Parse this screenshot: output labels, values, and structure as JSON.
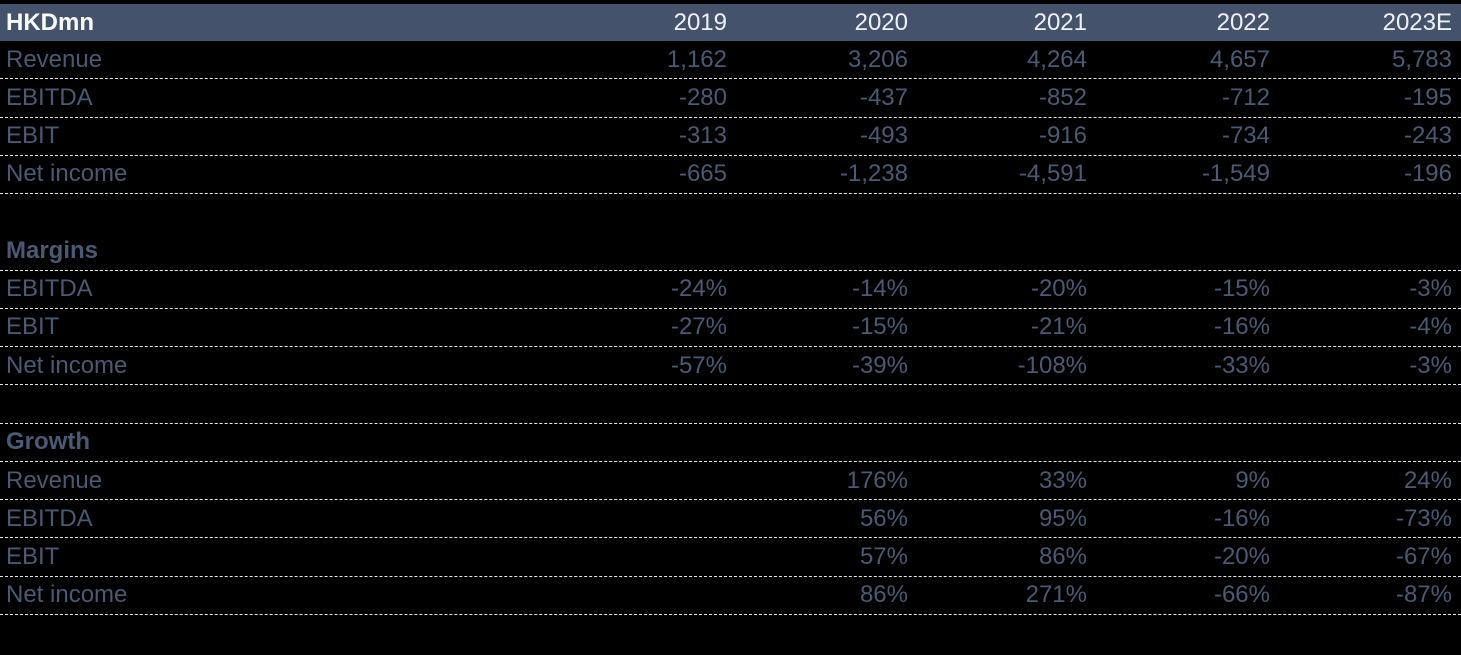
{
  "colors": {
    "background": "#000000",
    "header_bg": "#45526B",
    "header_unit_text": "#FBFCFE",
    "header_year_text": "#EDF1F8",
    "body_text": "#4A5A74",
    "separator_line": "#E4E8EE"
  },
  "table": {
    "unit_label": "HKDmn",
    "columns": [
      "2019",
      "2020",
      "2021",
      "2022",
      "2023E"
    ],
    "rows": [
      {
        "type": "data",
        "label": "Revenue",
        "values": [
          "1,162",
          "3,206",
          "4,264",
          "4,657",
          "5,783"
        ],
        "separator": true
      },
      {
        "type": "data",
        "label": "EBITDA",
        "values": [
          "-280",
          "-437",
          "-852",
          "-712",
          "-195"
        ],
        "separator": true
      },
      {
        "type": "data",
        "label": "EBIT",
        "values": [
          "-313",
          "-493",
          "-916",
          "-734",
          "-243"
        ],
        "separator": true
      },
      {
        "type": "data",
        "label": "Net income",
        "values": [
          "-665",
          "-1,238",
          "-4,591",
          "-1,549",
          "-196"
        ],
        "separator": true
      },
      {
        "type": "spacer",
        "label": "",
        "values": [
          "",
          "",
          "",
          "",
          ""
        ],
        "separator": false
      },
      {
        "type": "section",
        "label": "Margins",
        "values": [
          "",
          "",
          "",
          "",
          ""
        ],
        "separator": true
      },
      {
        "type": "data",
        "label": "EBITDA",
        "values": [
          "-24%",
          "-14%",
          "-20%",
          "-15%",
          "-3%"
        ],
        "separator": true
      },
      {
        "type": "data",
        "label": "EBIT",
        "values": [
          "-27%",
          "-15%",
          "-21%",
          "-16%",
          "-4%"
        ],
        "separator": true
      },
      {
        "type": "data",
        "label": "Net income",
        "values": [
          "-57%",
          "-39%",
          "-108%",
          "-33%",
          "-3%"
        ],
        "separator": true
      },
      {
        "type": "spacer",
        "label": "",
        "values": [
          "",
          "",
          "",
          "",
          ""
        ],
        "separator": true
      },
      {
        "type": "section",
        "label": "Growth",
        "values": [
          "",
          "",
          "",
          "",
          ""
        ],
        "separator": true
      },
      {
        "type": "data",
        "label": "Revenue",
        "values": [
          "",
          "176%",
          "33%",
          "9%",
          "24%"
        ],
        "separator": true
      },
      {
        "type": "data",
        "label": "EBITDA",
        "values": [
          "",
          "56%",
          "95%",
          "-16%",
          "-73%"
        ],
        "separator": true
      },
      {
        "type": "data",
        "label": "EBIT",
        "values": [
          "",
          "57%",
          "86%",
          "-20%",
          "-67%"
        ],
        "separator": true
      },
      {
        "type": "data",
        "label": "Net income",
        "values": [
          "",
          "86%",
          "271%",
          "-66%",
          "-87%"
        ],
        "separator": true
      }
    ]
  },
  "chart_data": {
    "type": "table",
    "title": "HKDmn",
    "columns": [
      "2019",
      "2020",
      "2021",
      "2022",
      "2023E"
    ],
    "sections": [
      {
        "name": "HKDmn",
        "unit": "HKDmn",
        "rows": [
          {
            "label": "Revenue",
            "values": [
              1162,
              3206,
              4264,
              4657,
              5783
            ]
          },
          {
            "label": "EBITDA",
            "values": [
              -280,
              -437,
              -852,
              -712,
              -195
            ]
          },
          {
            "label": "EBIT",
            "values": [
              -313,
              -493,
              -916,
              -734,
              -243
            ]
          },
          {
            "label": "Net income",
            "values": [
              -665,
              -1238,
              -4591,
              -1549,
              -196
            ]
          }
        ]
      },
      {
        "name": "Margins",
        "unit": "%",
        "rows": [
          {
            "label": "EBITDA",
            "values": [
              -24,
              -14,
              -20,
              -15,
              -3
            ]
          },
          {
            "label": "EBIT",
            "values": [
              -27,
              -15,
              -21,
              -16,
              -4
            ]
          },
          {
            "label": "Net income",
            "values": [
              -57,
              -39,
              -108,
              -33,
              -3
            ]
          }
        ]
      },
      {
        "name": "Growth",
        "unit": "%",
        "rows": [
          {
            "label": "Revenue",
            "values": [
              null,
              176,
              33,
              9,
              24
            ]
          },
          {
            "label": "EBITDA",
            "values": [
              null,
              56,
              95,
              -16,
              -73
            ]
          },
          {
            "label": "EBIT",
            "values": [
              null,
              57,
              86,
              -20,
              -67
            ]
          },
          {
            "label": "Net income",
            "values": [
              null,
              86,
              271,
              -66,
              -87
            ]
          }
        ]
      }
    ]
  }
}
